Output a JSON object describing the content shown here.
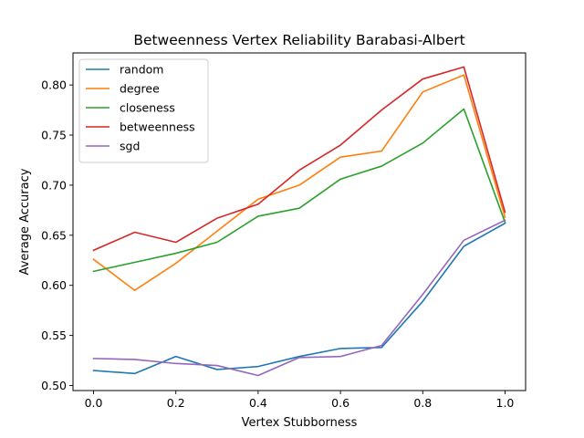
{
  "chart_data": {
    "type": "line",
    "title": "Betweenness Vertex Reliability Barabasi-Albert",
    "xlabel": "Vertex Stubborness",
    "ylabel": "Average Accuracy",
    "x": [
      0.0,
      0.1,
      0.2,
      0.3,
      0.4,
      0.5,
      0.6,
      0.7,
      0.8,
      0.9,
      1.0
    ],
    "xlim": [
      -0.05,
      1.05
    ],
    "ylim": [
      0.495,
      0.832
    ],
    "xticks": [
      0.0,
      0.2,
      0.4,
      0.6,
      0.8,
      1.0
    ],
    "xtick_labels": [
      "0.0",
      "0.2",
      "0.4",
      "0.6",
      "0.8",
      "1.0"
    ],
    "yticks": [
      0.5,
      0.55,
      0.6,
      0.65,
      0.7,
      0.75,
      0.8
    ],
    "ytick_labels": [
      "0.50",
      "0.55",
      "0.60",
      "0.65",
      "0.70",
      "0.75",
      "0.80"
    ],
    "grid": false,
    "legend_position": "top-left",
    "series": [
      {
        "name": "random",
        "color": "#1f77b4",
        "values": [
          0.515,
          0.512,
          0.529,
          0.516,
          0.519,
          0.529,
          0.537,
          0.538,
          0.584,
          0.639,
          0.662
        ]
      },
      {
        "name": "degree",
        "color": "#ff7f0e",
        "values": [
          0.626,
          0.595,
          0.622,
          0.654,
          0.686,
          0.7,
          0.728,
          0.734,
          0.793,
          0.81,
          0.668
        ]
      },
      {
        "name": "closeness",
        "color": "#2ca02c",
        "values": [
          0.614,
          0.623,
          0.632,
          0.643,
          0.669,
          0.677,
          0.706,
          0.719,
          0.742,
          0.776,
          0.663
        ]
      },
      {
        "name": "betweenness",
        "color": "#d62728",
        "values": [
          0.635,
          0.653,
          0.643,
          0.667,
          0.681,
          0.715,
          0.74,
          0.775,
          0.806,
          0.818,
          0.673
        ]
      },
      {
        "name": "sgd",
        "color": "#9467bd",
        "values": [
          0.527,
          0.526,
          0.522,
          0.52,
          0.51,
          0.528,
          0.529,
          0.54,
          0.591,
          0.645,
          0.665
        ]
      }
    ]
  }
}
